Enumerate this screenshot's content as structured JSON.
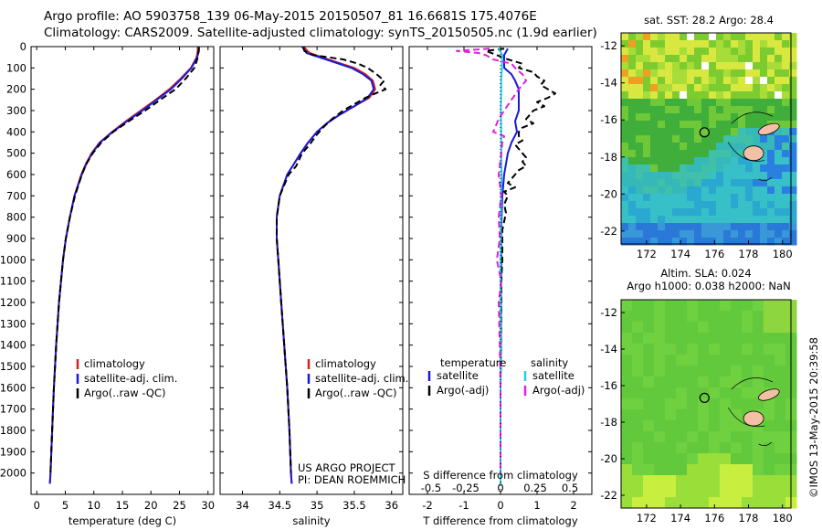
{
  "header": {
    "line1": "Argo profile: AO 5903758_139 06-May-2015 20150507_81 16.6681S 175.4076E",
    "line2": "Climatology: CARS2009. Satellite-adjusted climatology: synTS_20150505.nc (1.9d earlier)"
  },
  "colors": {
    "climatology": "#d42020",
    "satellite": "#1a1ad6",
    "argo": "#000000",
    "sal_satellite": "#22d0e8",
    "sal_argo": "#e020e0"
  },
  "chart_data": [
    {
      "id": "temperature",
      "type": "line",
      "xlabel": "temperature (deg C)",
      "ylabel": "",
      "xlim": [
        -1,
        31
      ],
      "ylim": [
        2100,
        0
      ],
      "xticks": [
        0,
        5,
        10,
        15,
        20,
        25,
        30
      ],
      "yticks": [
        0,
        100,
        200,
        300,
        400,
        500,
        600,
        700,
        800,
        900,
        1000,
        1100,
        1200,
        1300,
        1400,
        1500,
        1600,
        1700,
        1800,
        1900,
        2000
      ],
      "legend": {
        "placement": "lower-left",
        "entries": [
          "climatology",
          "satellite-adj. clim.",
          "Argo(..raw -QC)"
        ]
      },
      "series": [
        {
          "name": "climatology",
          "depth": [
            0,
            20,
            50,
            100,
            150,
            200,
            250,
            300,
            350,
            400,
            450,
            500,
            550,
            600,
            700,
            800,
            900,
            1000,
            1200,
            1400,
            1600,
            1800,
            2000,
            2050
          ],
          "values": [
            28.2,
            28.2,
            28.0,
            27.0,
            25.2,
            23.2,
            20.8,
            18.2,
            15.6,
            13.2,
            11.0,
            9.6,
            8.6,
            7.8,
            6.6,
            5.8,
            5.1,
            4.6,
            3.9,
            3.4,
            3.0,
            2.7,
            2.4,
            2.3
          ]
        },
        {
          "name": "satellite-adj. clim.",
          "depth": [
            0,
            20,
            50,
            100,
            150,
            200,
            250,
            300,
            350,
            400,
            450,
            500,
            550,
            600,
            700,
            800,
            900,
            1000,
            1200,
            1400,
            1600,
            1800,
            2000,
            2050
          ],
          "values": [
            28.4,
            28.4,
            28.1,
            27.1,
            25.4,
            23.5,
            21.0,
            18.5,
            15.8,
            13.3,
            11.1,
            9.7,
            8.7,
            7.9,
            6.6,
            5.8,
            5.1,
            4.6,
            3.9,
            3.4,
            3.0,
            2.7,
            2.4,
            2.3
          ]
        },
        {
          "name": "Argo(..raw -QC)",
          "depth": [
            5,
            30,
            60,
            100,
            150,
            200,
            250,
            300,
            350,
            400,
            450,
            500,
            550,
            600,
            700,
            800,
            900,
            1000,
            1200,
            1400,
            1600,
            1800,
            2000
          ],
          "values": [
            28.4,
            28.3,
            28.1,
            27.6,
            26.1,
            24.3,
            21.6,
            19.0,
            16.1,
            13.4,
            11.3,
            9.8,
            8.7,
            7.9,
            6.7,
            5.8,
            5.1,
            4.6,
            3.9,
            3.4,
            3.0,
            2.7,
            2.4
          ]
        }
      ]
    },
    {
      "id": "salinity",
      "type": "line",
      "xlabel": "salinity",
      "ylabel": "",
      "xlim": [
        33.7,
        36.15
      ],
      "ylim": [
        2100,
        0
      ],
      "xticks": [
        34,
        34.5,
        35,
        35.5,
        36
      ],
      "legend": {
        "placement": "lower-right",
        "entries": [
          "climatology",
          "satellite-adj. clim.",
          "Argo(..raw -QC)"
        ]
      },
      "annotation": [
        "US ARGO PROJECT",
        "PI: DEAN ROEMMICH"
      ],
      "series": [
        {
          "name": "climatology",
          "depth": [
            0,
            30,
            60,
            100,
            130,
            160,
            200,
            240,
            280,
            320,
            360,
            400,
            450,
            500,
            600,
            700,
            800,
            900,
            1000,
            1200,
            1400,
            1600,
            1800,
            2000,
            2050
          ],
          "values": [
            34.82,
            34.9,
            35.15,
            35.5,
            35.65,
            35.75,
            35.78,
            35.7,
            35.5,
            35.3,
            35.13,
            35.0,
            34.88,
            34.78,
            34.6,
            34.5,
            34.46,
            34.46,
            34.48,
            34.52,
            34.56,
            34.6,
            34.63,
            34.65,
            34.66
          ]
        },
        {
          "name": "satellite-adj. clim.",
          "depth": [
            0,
            30,
            60,
            100,
            130,
            160,
            200,
            240,
            280,
            320,
            360,
            400,
            450,
            500,
            600,
            700,
            800,
            900,
            1000,
            1200,
            1400,
            1600,
            1800,
            2000,
            2050
          ],
          "values": [
            34.8,
            34.86,
            35.12,
            35.46,
            35.62,
            35.73,
            35.76,
            35.68,
            35.5,
            35.3,
            35.13,
            35.0,
            34.88,
            34.78,
            34.6,
            34.5,
            34.46,
            34.46,
            34.48,
            34.52,
            34.56,
            34.6,
            34.63,
            34.65,
            34.66
          ]
        },
        {
          "name": "Argo(..raw -QC)",
          "depth": [
            5,
            20,
            40,
            60,
            80,
            100,
            130,
            160,
            180,
            200,
            220,
            240,
            260,
            300,
            340,
            380,
            420,
            460,
            500,
            560,
            600,
            700,
            800,
            900,
            1000,
            1200,
            1400,
            1600,
            1800,
            2000
          ],
          "values": [
            34.82,
            34.83,
            34.95,
            35.35,
            35.55,
            35.68,
            35.8,
            35.9,
            35.85,
            35.92,
            35.78,
            35.65,
            35.55,
            35.35,
            35.2,
            35.08,
            34.98,
            34.9,
            34.8,
            34.72,
            34.62,
            34.5,
            34.46,
            34.46,
            34.48,
            34.52,
            34.56,
            34.6,
            34.63,
            34.65
          ]
        }
      ]
    },
    {
      "id": "differences",
      "type": "line",
      "xlabel": "T difference from climatology",
      "xlabel_top": "S difference from climatology",
      "xlim": [
        -2.5,
        2.5
      ],
      "ylim": [
        2100,
        0
      ],
      "xticks": [
        -2,
        -1,
        0,
        1,
        2
      ],
      "xticks_salinity_labels": [
        "-0.5",
        "-0.25",
        "0",
        "0.25",
        "0.5"
      ],
      "xticks_salinity_values": [
        -1.9,
        -0.95,
        0,
        0.95,
        1.9
      ],
      "legend": {
        "placement": "top",
        "col1_title": "temperature",
        "col2_title": "salinity",
        "entries": [
          "satellite",
          "Argo(-adj)",
          "satellite",
          "Argo(-adj)"
        ]
      },
      "series": [
        {
          "name": "T satellite",
          "depth": [
            10,
            40,
            70,
            100,
            130,
            160,
            200,
            250,
            300,
            350,
            400,
            450,
            500,
            550,
            600,
            700,
            800,
            900,
            1000,
            1200,
            1400,
            1600,
            1800,
            2000,
            2050
          ],
          "values": [
            0.2,
            0.1,
            0.1,
            0.1,
            0.3,
            0.4,
            0.5,
            0.5,
            0.5,
            0.4,
            0.45,
            0.3,
            0.2,
            0.15,
            0.1,
            0.05,
            0.03,
            0.02,
            0.02,
            0.01,
            0.01,
            0,
            0,
            0,
            0
          ]
        },
        {
          "name": "T Argo(-adj)",
          "depth": [
            10,
            20,
            40,
            60,
            80,
            100,
            120,
            140,
            160,
            180,
            200,
            220,
            240,
            260,
            280,
            300,
            320,
            340,
            360,
            380,
            400,
            420,
            440,
            460,
            480,
            500,
            520,
            540,
            560,
            580,
            600,
            620,
            640,
            660,
            680,
            700,
            740,
            780,
            820,
            860,
            900,
            1000,
            1100,
            1200,
            1400,
            1600,
            1800,
            2000
          ],
          "values": [
            0.1,
            -0.4,
            -0.1,
            0.2,
            0.6,
            0.5,
            0.9,
            1.0,
            1.2,
            1.1,
            1.3,
            1.5,
            1.3,
            1.0,
            1.2,
            0.9,
            0.8,
            0.7,
            0.9,
            0.6,
            0.5,
            0.5,
            0.6,
            0.4,
            0.5,
            0.6,
            0.7,
            0.6,
            0.7,
            0.5,
            0.4,
            0.3,
            0.2,
            0.4,
            0.1,
            0.2,
            0.1,
            0.15,
            0.1,
            0.05,
            0.05,
            0.05,
            0.02,
            0.02,
            0.01,
            0,
            0,
            0
          ]
        },
        {
          "name": "S satellite",
          "depth": [
            10,
            40,
            70,
            100,
            150,
            200,
            300,
            400,
            500,
            600,
            700,
            800,
            900,
            1000,
            1200,
            1400,
            1600,
            1800,
            2000,
            2050
          ],
          "values": [
            -0.05,
            0.05,
            0.04,
            0.04,
            0.02,
            0.02,
            0.01,
            0.02,
            0.02,
            0.03,
            0.02,
            0.01,
            0.01,
            0,
            0,
            0,
            0,
            0,
            0,
            0
          ]
        },
        {
          "name": "S Argo(-adj)",
          "depth": [
            10,
            20,
            30,
            40,
            60,
            80,
            100,
            130,
            160,
            200,
            250,
            300,
            340,
            380,
            400,
            420,
            450,
            500,
            600,
            700,
            800,
            900,
            1000,
            1100,
            1200,
            1400,
            1600,
            1800,
            2000
          ],
          "values": [
            -0.3,
            -1.2,
            -0.6,
            -0.4,
            -0.2,
            0.3,
            0.4,
            0.6,
            0.7,
            0.5,
            0.3,
            0.1,
            -0.05,
            -0.15,
            -0.2,
            0.1,
            0.05,
            0.02,
            -0.05,
            0.02,
            -0.05,
            -0.02,
            -0.1,
            0.02,
            -0.05,
            -0.02,
            0,
            0,
            0
          ]
        }
      ]
    },
    {
      "id": "sst_map",
      "type": "heatmap",
      "title": "sat. SST: 28.2 Argo: 28.4",
      "xlim": [
        170.5,
        180.5
      ],
      "ylim": [
        -22.7,
        -11.3
      ],
      "xticks": [
        172,
        174,
        176,
        178,
        180
      ],
      "yticks": [
        -12,
        -14,
        -16,
        -18,
        -20,
        -22
      ],
      "marker": {
        "lon": 175.41,
        "lat": -16.67
      }
    },
    {
      "id": "sla_map",
      "type": "heatmap",
      "title_line1": "Altim. SLA: 0.024",
      "title_line2": "Argo h1000: 0.038 h2000: NaN",
      "xlim": [
        170.5,
        180.5
      ],
      "ylim": [
        -22.7,
        -11.3
      ],
      "xticks": [
        172,
        174,
        176,
        178,
        180
      ],
      "yticks": [
        -12,
        -14,
        -16,
        -18,
        -20,
        -22
      ],
      "marker": {
        "lon": 175.41,
        "lat": -16.67
      }
    }
  ],
  "stamp": "©IMOS 13-May-2015 20:39:58"
}
